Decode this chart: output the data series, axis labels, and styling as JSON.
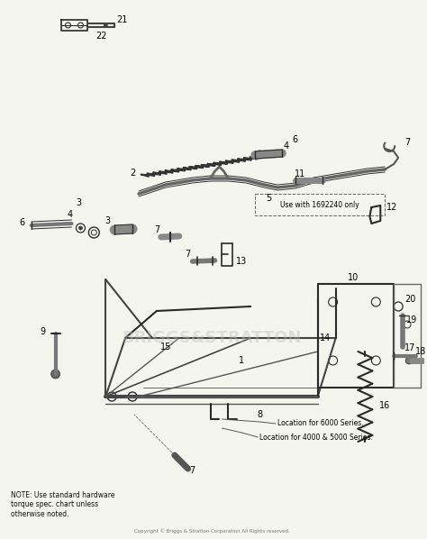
{
  "bg_color": "#f5f5f0",
  "line_color": "#2a2a2a",
  "label_color": "#000000",
  "watermark": "BRIGGS&STRATTON",
  "note_text": "NOTE: Use standard hardware\ntorque spec. chart unless\notherwise noted.",
  "copyright_text": "Copyright © Briggs & Stratton Corporation All Rights reserved.",
  "use_with_text": "Use with 1692240 only",
  "loc_6000": "Location for 6000 Series.",
  "loc_4000": "Location for 4000 & 5000 Series."
}
